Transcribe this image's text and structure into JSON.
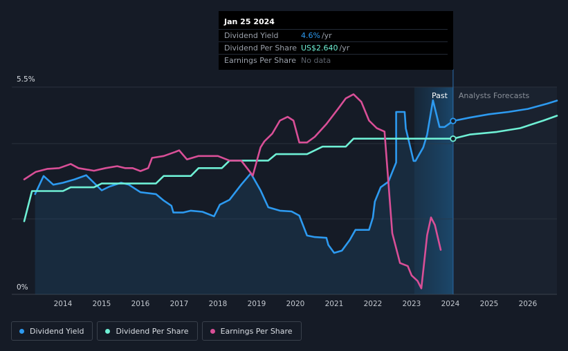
{
  "tooltip": {
    "date": "Jan 25 2024",
    "rows": [
      {
        "label": "Dividend Yield",
        "value": "4.6%",
        "unit": "/yr",
        "color": "#2d9af0"
      },
      {
        "label": "Dividend Per Share",
        "value": "US$2.640",
        "unit": "/yr",
        "color": "#6ff0d5"
      },
      {
        "label": "Earnings Per Share",
        "value": "No data",
        "unit": "",
        "color": "#5e646e"
      }
    ]
  },
  "legend": [
    {
      "label": "Dividend Yield",
      "color": "#2d9af0"
    },
    {
      "label": "Dividend Per Share",
      "color": "#6ff0d5"
    },
    {
      "label": "Earnings Per Share",
      "color": "#d94f97"
    }
  ],
  "chart_data": {
    "type": "line",
    "title": "",
    "xlabel": "",
    "ylabel": "",
    "xlim": [
      2012.7,
      2026.75
    ],
    "ylim": [
      0,
      5.5
    ],
    "y_tick_labels": [
      {
        "value": 5.5,
        "label": "5.5%"
      },
      {
        "value": 0,
        "label": "0%"
      }
    ],
    "x_ticks": [
      2014,
      2015,
      2016,
      2017,
      2018,
      2019,
      2020,
      2021,
      2022,
      2023,
      2024,
      2025,
      2026
    ],
    "gridlines": [
      0,
      2,
      4,
      5.5
    ],
    "past_label": "Past",
    "forecast_label": "Analysts Forecasts",
    "forecast_start": 2023.07,
    "today": 2024.07,
    "series": [
      {
        "name": "Dividend Yield",
        "color": "#2d9af0",
        "fill": true,
        "points": [
          [
            2013.28,
            2.66
          ],
          [
            2013.5,
            3.14
          ],
          [
            2013.75,
            2.91
          ],
          [
            2014.0,
            2.96
          ],
          [
            2014.3,
            3.05
          ],
          [
            2014.6,
            3.16
          ],
          [
            2014.8,
            2.96
          ],
          [
            2015.0,
            2.76
          ],
          [
            2015.2,
            2.86
          ],
          [
            2015.5,
            2.96
          ],
          [
            2015.7,
            2.91
          ],
          [
            2016.0,
            2.71
          ],
          [
            2016.4,
            2.66
          ],
          [
            2016.6,
            2.49
          ],
          [
            2016.8,
            2.35
          ],
          [
            2016.85,
            2.17
          ],
          [
            2017.1,
            2.17
          ],
          [
            2017.3,
            2.22
          ],
          [
            2017.6,
            2.19
          ],
          [
            2017.9,
            2.07
          ],
          [
            2018.05,
            2.38
          ],
          [
            2018.3,
            2.51
          ],
          [
            2018.6,
            2.91
          ],
          [
            2018.85,
            3.21
          ],
          [
            2019.1,
            2.76
          ],
          [
            2019.3,
            2.31
          ],
          [
            2019.6,
            2.22
          ],
          [
            2019.9,
            2.2
          ],
          [
            2020.1,
            2.09
          ],
          [
            2020.3,
            1.56
          ],
          [
            2020.5,
            1.52
          ],
          [
            2020.8,
            1.5
          ],
          [
            2020.85,
            1.31
          ],
          [
            2021.0,
            1.1
          ],
          [
            2021.2,
            1.16
          ],
          [
            2021.4,
            1.44
          ],
          [
            2021.55,
            1.71
          ],
          [
            2021.9,
            1.71
          ],
          [
            2022.0,
            2.04
          ],
          [
            2022.05,
            2.46
          ],
          [
            2022.2,
            2.84
          ],
          [
            2022.4,
            2.99
          ],
          [
            2022.6,
            3.5
          ],
          [
            2022.6,
            4.84
          ],
          [
            2022.82,
            4.84
          ],
          [
            2022.85,
            4.4
          ],
          [
            2023.05,
            3.54
          ],
          [
            2023.1,
            3.54
          ],
          [
            2023.3,
            3.9
          ],
          [
            2023.4,
            4.24
          ],
          [
            2023.55,
            5.15
          ],
          [
            2023.72,
            4.44
          ],
          [
            2023.85,
            4.44
          ],
          [
            2024.07,
            4.6
          ]
        ]
      },
      {
        "name": "Dividend Yield Forecast",
        "color": "#2d9af0",
        "fill": false,
        "points": [
          [
            2024.07,
            4.6
          ],
          [
            2024.5,
            4.69
          ],
          [
            2025.0,
            4.78
          ],
          [
            2025.5,
            4.84
          ],
          [
            2026.0,
            4.92
          ],
          [
            2026.5,
            5.06
          ],
          [
            2026.75,
            5.14
          ]
        ]
      },
      {
        "name": "Dividend Per Share",
        "color": "#6ff0d5",
        "fill": false,
        "points": [
          [
            2013.0,
            1.94
          ],
          [
            2013.2,
            2.74
          ],
          [
            2014.0,
            2.74
          ],
          [
            2014.2,
            2.84
          ],
          [
            2014.8,
            2.84
          ],
          [
            2015.0,
            2.94
          ],
          [
            2016.4,
            2.94
          ],
          [
            2016.6,
            3.14
          ],
          [
            2017.3,
            3.14
          ],
          [
            2017.5,
            3.35
          ],
          [
            2018.1,
            3.35
          ],
          [
            2018.3,
            3.55
          ],
          [
            2019.3,
            3.55
          ],
          [
            2019.5,
            3.72
          ],
          [
            2020.3,
            3.72
          ],
          [
            2020.7,
            3.92
          ],
          [
            2021.3,
            3.92
          ],
          [
            2021.5,
            4.13
          ],
          [
            2024.07,
            4.13
          ],
          [
            2024.5,
            4.24
          ],
          [
            2025.2,
            4.31
          ],
          [
            2025.8,
            4.41
          ],
          [
            2026.4,
            4.61
          ],
          [
            2026.75,
            4.74
          ]
        ]
      },
      {
        "name": "Earnings Per Share",
        "color": "#d94f97",
        "fill": false,
        "points": [
          [
            2013.0,
            3.05
          ],
          [
            2013.3,
            3.25
          ],
          [
            2013.6,
            3.33
          ],
          [
            2013.9,
            3.35
          ],
          [
            2014.2,
            3.46
          ],
          [
            2014.4,
            3.35
          ],
          [
            2014.8,
            3.28
          ],
          [
            2015.1,
            3.35
          ],
          [
            2015.4,
            3.4
          ],
          [
            2015.6,
            3.35
          ],
          [
            2015.8,
            3.35
          ],
          [
            2016.0,
            3.27
          ],
          [
            2016.2,
            3.35
          ],
          [
            2016.3,
            3.62
          ],
          [
            2016.6,
            3.67
          ],
          [
            2016.9,
            3.78
          ],
          [
            2017.0,
            3.82
          ],
          [
            2017.2,
            3.58
          ],
          [
            2017.5,
            3.67
          ],
          [
            2017.8,
            3.67
          ],
          [
            2018.0,
            3.67
          ],
          [
            2018.3,
            3.55
          ],
          [
            2018.6,
            3.55
          ],
          [
            2018.85,
            3.22
          ],
          [
            2018.9,
            3.15
          ],
          [
            2019.1,
            3.9
          ],
          [
            2019.2,
            4.06
          ],
          [
            2019.4,
            4.26
          ],
          [
            2019.6,
            4.61
          ],
          [
            2019.8,
            4.71
          ],
          [
            2019.95,
            4.61
          ],
          [
            2020.1,
            4.03
          ],
          [
            2020.3,
            4.03
          ],
          [
            2020.5,
            4.18
          ],
          [
            2020.8,
            4.52
          ],
          [
            2021.1,
            4.92
          ],
          [
            2021.3,
            5.2
          ],
          [
            2021.5,
            5.31
          ],
          [
            2021.7,
            5.11
          ],
          [
            2021.9,
            4.61
          ],
          [
            2022.1,
            4.41
          ],
          [
            2022.3,
            4.32
          ],
          [
            2022.5,
            1.62
          ],
          [
            2022.7,
            0.83
          ],
          [
            2022.9,
            0.75
          ],
          [
            2023.0,
            0.5
          ],
          [
            2023.15,
            0.36
          ],
          [
            2023.25,
            0.16
          ],
          [
            2023.4,
            1.57
          ],
          [
            2023.5,
            2.04
          ],
          [
            2023.6,
            1.84
          ],
          [
            2023.75,
            1.18
          ]
        ]
      }
    ],
    "markers": [
      {
        "series": "Dividend Yield",
        "x": 2024.07,
        "y": 4.6
      },
      {
        "series": "Dividend Per Share",
        "x": 2024.07,
        "y": 4.13
      }
    ]
  }
}
